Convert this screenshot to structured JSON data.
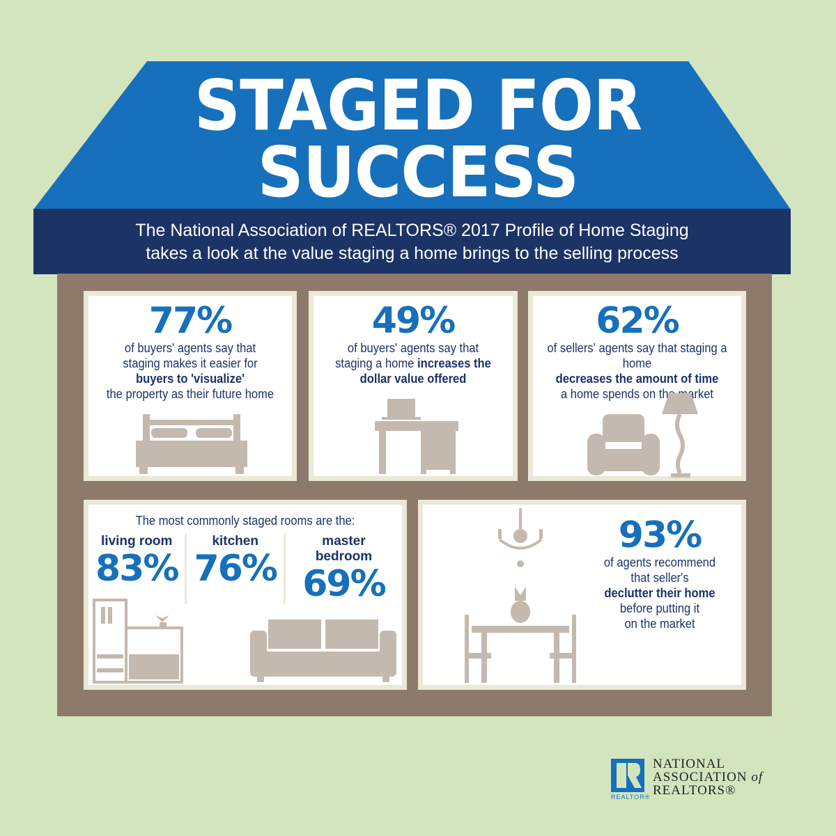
{
  "header": {
    "title_line1": "STAGED FOR",
    "title_line2": "SUCCESS",
    "subtitle_line1": "The National Association of REALTORS® 2017 Profile of Home Staging",
    "subtitle_line2": "takes a look at the value staging a home brings to the selling process"
  },
  "stats": [
    {
      "percent": "77%",
      "l1": "of buyers' agents say that",
      "l2": "staging makes it easier for",
      "bold": "buyers to 'visualize'",
      "l3": "the property as their future home",
      "icon": "bed-icon"
    },
    {
      "percent": "49%",
      "l1": "of buyers' agents say that",
      "l2": "staging a home",
      "bold1": "increases the",
      "bold2": "dollar value offered",
      "icon": "desk-icon"
    },
    {
      "percent": "62%",
      "l1": "of sellers' agents say that staging a home",
      "bold": "decreases the amount of time",
      "l2": "a home spends on the market",
      "icon": "armchair-lamp-icon"
    }
  ],
  "rooms": {
    "heading": "The most commonly staged rooms are the:",
    "items": [
      {
        "name": "living room",
        "percent": "83%"
      },
      {
        "name": "kitchen",
        "percent": "76%"
      },
      {
        "name": "master bedroom",
        "percent": "69%"
      }
    ]
  },
  "declutter": {
    "percent": "93%",
    "l1": "of agents recommend",
    "l2": "that seller's",
    "bold": "declutter their home",
    "l3": "before putting it",
    "l4": "on the market"
  },
  "logo": {
    "badge": "REALTOR®",
    "line1": "NATIONAL",
    "line2": "ASSOCIATION",
    "of": "of",
    "line3": "REALTORS®"
  },
  "colors": {
    "background": "#d3e5bf",
    "roof": "#1670bb",
    "band": "#1c3366",
    "house": "#8e7a6a",
    "accent": "#1670bb"
  }
}
